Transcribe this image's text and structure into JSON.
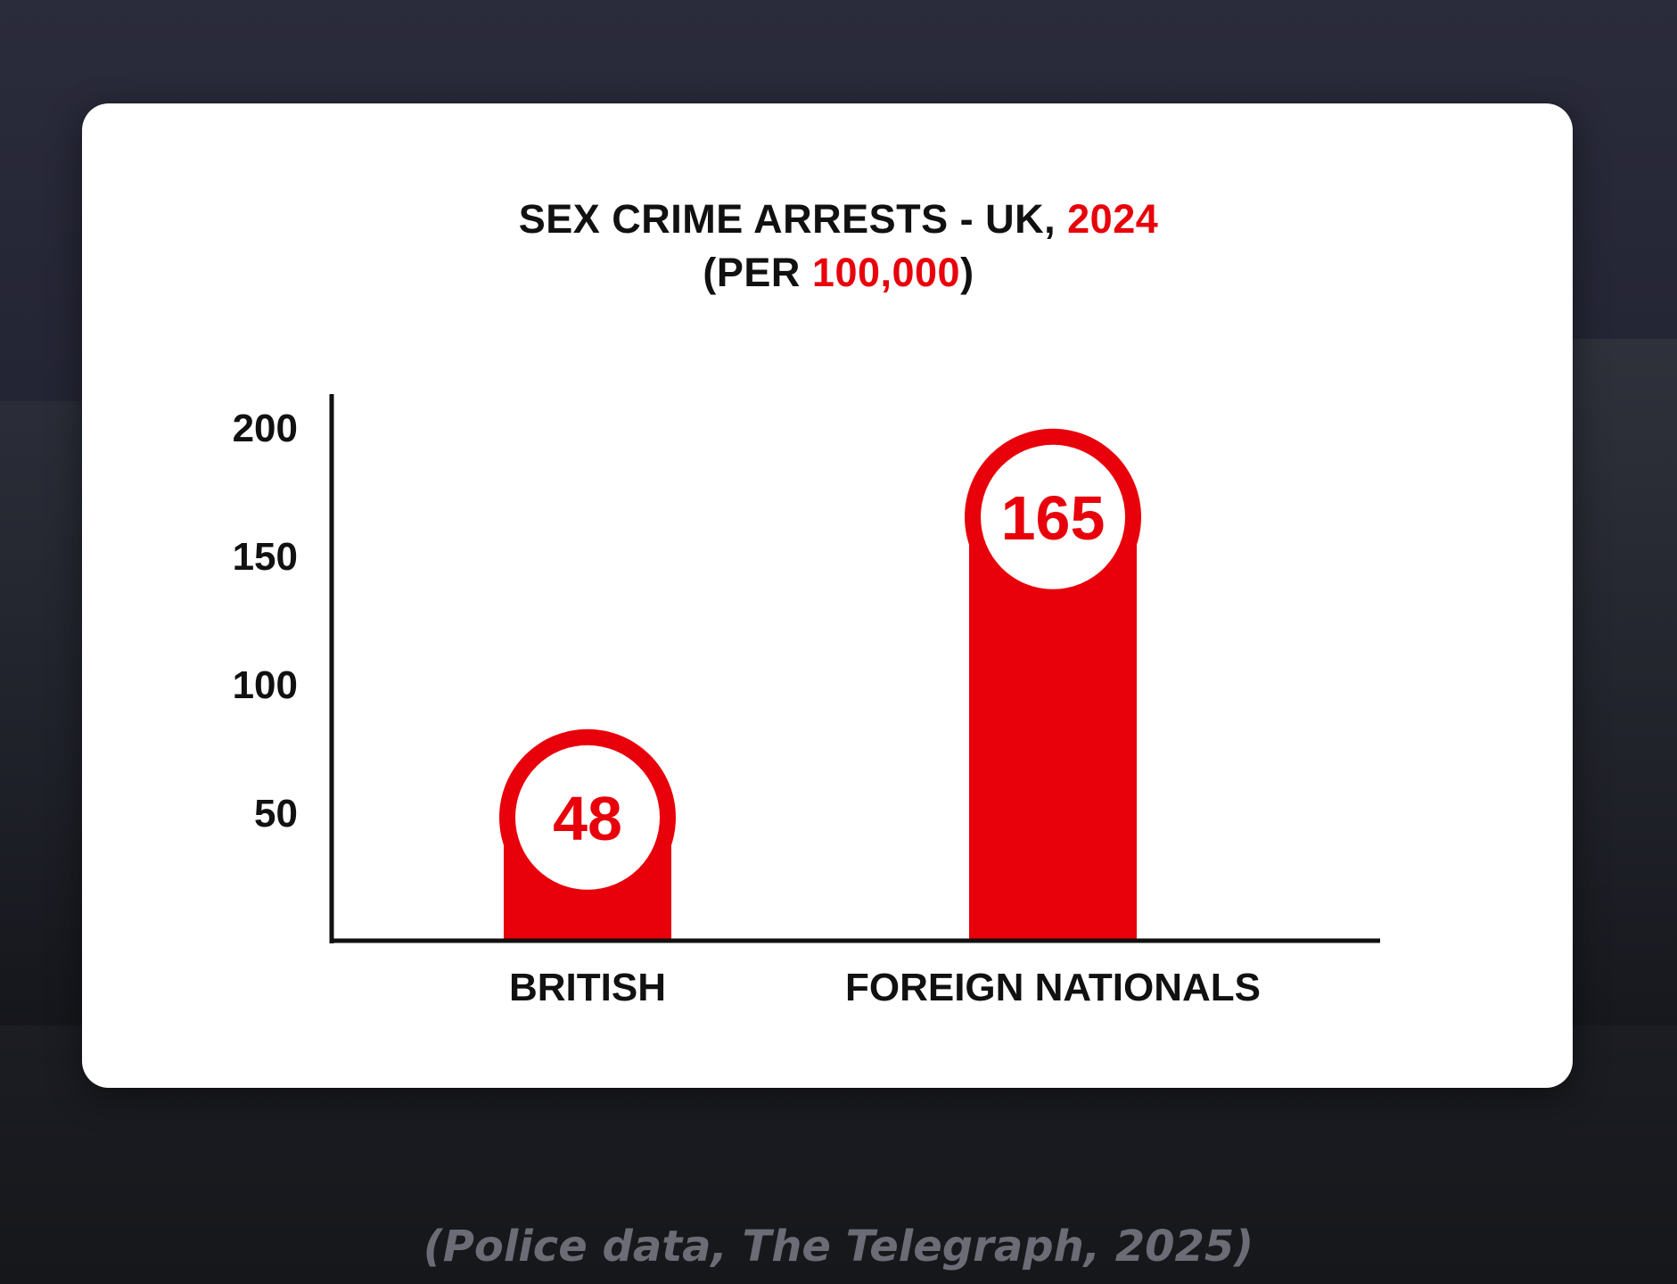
{
  "title": {
    "line1_prefix": "SEX CRIME ARRESTS - UK, ",
    "line1_year": "2024",
    "line2_open": "(PER ",
    "line2_number": "100,000",
    "line2_close": ")"
  },
  "source": "(Police data, The Telegraph, 2025)",
  "colors": {
    "accent": "#e8000b",
    "text": "#111111",
    "card": "#ffffff",
    "source": "#6b6c75"
  },
  "chart_data": {
    "type": "bar",
    "title": "SEX CRIME ARRESTS - UK, 2024 (PER 100,000)",
    "categories": [
      "BRITISH",
      "FOREIGN NATIONALS"
    ],
    "values": [
      48,
      165
    ],
    "value_labels": [
      "48",
      "165"
    ],
    "yticks": [
      "50",
      "100",
      "150",
      "200"
    ],
    "ylim": [
      0,
      200
    ],
    "grid": false,
    "legend": "none"
  }
}
